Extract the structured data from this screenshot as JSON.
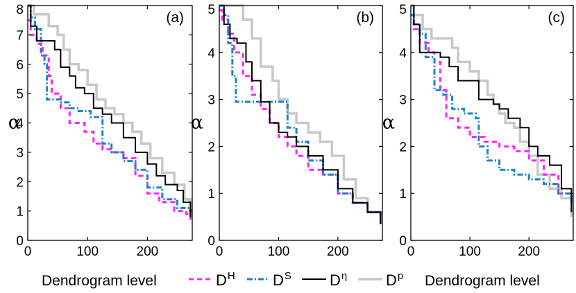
{
  "chart_data": [
    {
      "type": "line",
      "panel_label": "(a)",
      "ylabel": "α",
      "xlabel": "",
      "xlim": [
        0,
        275
      ],
      "ylim": [
        0,
        8
      ],
      "xticks": [
        0,
        100,
        200
      ],
      "yticks": [
        0,
        1,
        2,
        3,
        4,
        5,
        6,
        7,
        8
      ],
      "series": [
        {
          "key": "DH",
          "x": [
            0,
            5,
            15,
            25,
            35,
            40,
            55,
            70,
            95,
            110,
            125,
            140,
            160,
            180,
            200,
            220,
            245,
            265,
            272
          ],
          "y": [
            7.5,
            7.0,
            6.7,
            6.3,
            5.6,
            5.0,
            4.5,
            4.0,
            3.7,
            3.3,
            3.1,
            3.0,
            2.8,
            2.2,
            1.6,
            1.3,
            1.0,
            0.9,
            0.7
          ]
        },
        {
          "key": "DS",
          "x": [
            0,
            5,
            12,
            22,
            28,
            32,
            45,
            55,
            70,
            85,
            105,
            125,
            140,
            160,
            180,
            200,
            225,
            250,
            272
          ],
          "y": [
            8.0,
            7.6,
            7.2,
            6.3,
            6.0,
            4.8,
            4.8,
            4.7,
            4.5,
            4.4,
            4.2,
            3.3,
            3.0,
            2.7,
            2.4,
            1.8,
            1.4,
            1.1,
            0.8
          ]
        },
        {
          "key": "Deta",
          "x": [
            0,
            5,
            15,
            30,
            45,
            55,
            70,
            80,
            95,
            110,
            125,
            140,
            160,
            180,
            200,
            215,
            230,
            250,
            260,
            272
          ],
          "y": [
            8.0,
            7.3,
            6.8,
            6.8,
            6.5,
            5.9,
            5.6,
            5.2,
            5.0,
            4.5,
            4.3,
            4.0,
            3.5,
            3.0,
            2.6,
            2.2,
            1.9,
            1.7,
            1.3,
            0.8
          ]
        },
        {
          "key": "Dp",
          "x": [
            0,
            10,
            20,
            35,
            50,
            60,
            70,
            85,
            100,
            115,
            130,
            145,
            160,
            175,
            190,
            205,
            225,
            245,
            262,
            272
          ],
          "y": [
            8.0,
            7.7,
            7.7,
            7.3,
            7.0,
            6.5,
            6.0,
            5.8,
            5.3,
            4.8,
            4.5,
            4.3,
            4.0,
            3.7,
            3.3,
            2.8,
            2.3,
            1.9,
            1.4,
            0.8
          ]
        }
      ]
    },
    {
      "type": "line",
      "panel_label": "(b)",
      "ylabel": "α",
      "xlabel": "",
      "xlim": [
        0,
        275
      ],
      "ylim": [
        0,
        5
      ],
      "xticks": [
        0,
        100,
        200
      ],
      "yticks": [
        0,
        1,
        2,
        3,
        4,
        5
      ],
      "series": [
        {
          "key": "DH",
          "x": [
            0,
            5,
            15,
            25,
            40,
            55,
            70,
            85,
            100,
            115,
            130,
            150,
            175,
            200,
            225,
            250,
            272
          ],
          "y": [
            4.9,
            4.7,
            4.4,
            4.0,
            3.5,
            3.1,
            2.8,
            2.5,
            2.2,
            2.0,
            1.8,
            1.5,
            1.4,
            1.0,
            0.8,
            0.6,
            0.35
          ]
        },
        {
          "key": "DS",
          "x": [
            0,
            8,
            15,
            22,
            28,
            50,
            75,
            100,
            115,
            130,
            150,
            175,
            200,
            225,
            250,
            272
          ],
          "y": [
            5.0,
            4.8,
            4.2,
            3.5,
            2.95,
            2.95,
            2.95,
            2.95,
            2.4,
            2.1,
            1.7,
            1.4,
            1.0,
            0.8,
            0.6,
            0.35
          ]
        },
        {
          "key": "Deta",
          "x": [
            0,
            8,
            18,
            30,
            45,
            55,
            70,
            85,
            100,
            115,
            130,
            150,
            175,
            200,
            225,
            250,
            272
          ],
          "y": [
            5.0,
            4.6,
            4.3,
            4.2,
            3.8,
            3.4,
            2.95,
            2.5,
            2.3,
            2.2,
            2.0,
            1.8,
            1.5,
            1.1,
            0.8,
            0.6,
            0.35
          ]
        },
        {
          "key": "Dp",
          "x": [
            0,
            30,
            40,
            55,
            70,
            90,
            100,
            115,
            130,
            150,
            170,
            190,
            210,
            230,
            250,
            272
          ],
          "y": [
            5.0,
            5.0,
            4.7,
            4.3,
            3.7,
            3.4,
            3.0,
            2.7,
            2.5,
            2.3,
            2.1,
            1.8,
            1.3,
            0.9,
            0.6,
            0.35
          ]
        }
      ]
    },
    {
      "type": "line",
      "panel_label": "(c)",
      "ylabel": "α",
      "xlabel": "",
      "xlim": [
        0,
        275
      ],
      "ylim": [
        0,
        5
      ],
      "xticks": [
        0,
        100,
        200
      ],
      "yticks": [
        0,
        1,
        2,
        3,
        4,
        5
      ],
      "series": [
        {
          "key": "DH",
          "x": [
            0,
            5,
            15,
            30,
            40,
            50,
            60,
            80,
            100,
            125,
            150,
            175,
            200,
            225,
            250,
            272
          ],
          "y": [
            4.8,
            4.5,
            4.2,
            4.0,
            3.8,
            3.2,
            2.6,
            2.4,
            2.2,
            2.1,
            2.0,
            1.9,
            1.7,
            1.4,
            1.0,
            0.8
          ]
        },
        {
          "key": "DS",
          "x": [
            0,
            5,
            15,
            25,
            40,
            55,
            70,
            90,
            110,
            115,
            130,
            150,
            175,
            200,
            225,
            250,
            272
          ],
          "y": [
            4.8,
            4.6,
            4.4,
            3.9,
            3.2,
            3.1,
            2.8,
            2.7,
            2.6,
            2.0,
            1.7,
            1.5,
            1.4,
            1.3,
            1.2,
            1.0,
            0.8
          ]
        },
        {
          "key": "Deta",
          "x": [
            0,
            5,
            15,
            35,
            50,
            65,
            80,
            100,
            115,
            140,
            150,
            165,
            185,
            200,
            215,
            235,
            255,
            272
          ],
          "y": [
            5.0,
            4.6,
            4.0,
            4.0,
            3.9,
            3.7,
            3.4,
            3.4,
            3.0,
            2.9,
            2.8,
            2.6,
            2.4,
            2.0,
            1.8,
            1.6,
            1.1,
            0.6
          ]
        },
        {
          "key": "Dp",
          "x": [
            0,
            5,
            20,
            35,
            55,
            70,
            80,
            100,
            115,
            130,
            140,
            150,
            160,
            175,
            185,
            200,
            215,
            235,
            255,
            272
          ],
          "y": [
            5.0,
            4.8,
            4.5,
            4.3,
            4.3,
            4.1,
            3.8,
            3.6,
            3.4,
            3.1,
            2.9,
            2.7,
            2.5,
            2.4,
            2.1,
            1.8,
            1.4,
            1.1,
            0.9,
            0.5
          ]
        }
      ]
    }
  ],
  "legend": {
    "placement": "bottom",
    "entries": [
      {
        "key": "DH",
        "base": "D",
        "sup": "H",
        "color": "#ff22ff",
        "dash": "7,5",
        "width": 3
      },
      {
        "key": "DS",
        "base": "D",
        "sup": "S",
        "color": "#1a84c8",
        "dash": "8,3,2,3",
        "width": 3
      },
      {
        "key": "Deta",
        "base": "D",
        "sup": "η",
        "color": "#000000",
        "dash": "",
        "width": 2
      },
      {
        "key": "Dp",
        "base": "D",
        "sup": "p",
        "color": "#c8c8c8",
        "dash": "",
        "width": 3.5
      }
    ]
  },
  "bottom_labels": {
    "left": "Dendrogram level",
    "right": "Dendrogram level"
  }
}
